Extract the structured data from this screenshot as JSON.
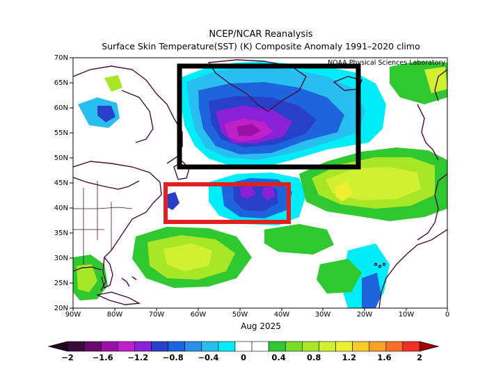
{
  "title_line1": "NCEP/NCAR Reanalysis",
  "title_line2": "Surface Skin Temperature(SST) (K) Composite Anomaly 1991–2020 climo",
  "credit": "NOAA Physical Sciences Laboratory",
  "date_label": "Aug 2025",
  "lat_labels": [
    "70N",
    "65N",
    "60N",
    "55N",
    "50N",
    "45N",
    "40N",
    "35N",
    "30N",
    "25N",
    "20N"
  ],
  "lon_labels": [
    "90W",
    "80W",
    "70W",
    "60W",
    "50W",
    "40W",
    "30W",
    "20W",
    "10W",
    "0"
  ],
  "colorbar": {
    "tick_labels": [
      "−2",
      "−1.6",
      "−1.2",
      "−0.8",
      "−0.4",
      "0",
      "0.4",
      "0.8",
      "1.2",
      "1.6",
      "2"
    ],
    "colors": [
      "#3a0a3a",
      "#6a0a6a",
      "#9a10a8",
      "#c020c8",
      "#8a20d8",
      "#2840c8",
      "#1e64dc",
      "#2c90e8",
      "#28bff0",
      "#00ecf8",
      "#ffffff",
      "#ffffff",
      "#30c830",
      "#78dc28",
      "#a8e628",
      "#d2f032",
      "#f0f032",
      "#f8cc28",
      "#f8a028",
      "#f87028",
      "#f03028"
    ],
    "end_left": "#200420",
    "end_right": "#a00000"
  },
  "colors": {
    "highlight_black": "#000000",
    "highlight_red": "#e02020",
    "coast": "#4a0a3a"
  }
}
